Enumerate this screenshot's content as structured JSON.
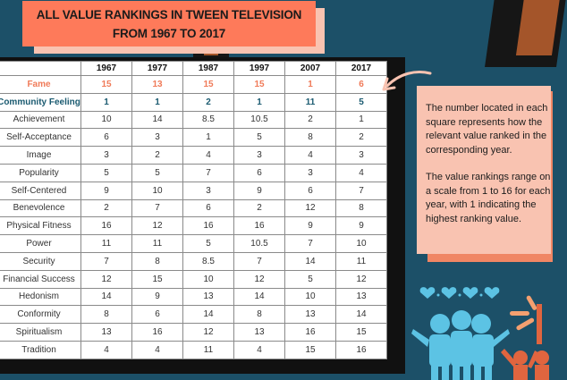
{
  "title": {
    "line1": "ALL VALUE RANKINGS IN TWEEN TELEVISION",
    "line2": "FROM 1967 TO 2017"
  },
  "table": {
    "columns": [
      "",
      "1967",
      "1977",
      "1987",
      "1997",
      "2007",
      "2017"
    ],
    "rows": [
      {
        "label": "Fame",
        "values": [
          "15",
          "13",
          "15",
          "15",
          "1",
          "6"
        ],
        "highlight": "#f07a58"
      },
      {
        "label": "Community Feeling",
        "values": [
          "1",
          "1",
          "2",
          "1",
          "11",
          "5"
        ],
        "highlight": "#1a5a70"
      },
      {
        "label": "Achievement",
        "values": [
          "10",
          "14",
          "8.5",
          "10.5",
          "2",
          "1"
        ]
      },
      {
        "label": "Self-Acceptance",
        "values": [
          "6",
          "3",
          "1",
          "5",
          "8",
          "2"
        ]
      },
      {
        "label": "Image",
        "values": [
          "3",
          "2",
          "4",
          "3",
          "4",
          "3"
        ]
      },
      {
        "label": "Popularity",
        "values": [
          "5",
          "5",
          "7",
          "6",
          "3",
          "4"
        ]
      },
      {
        "label": "Self-Centered",
        "values": [
          "9",
          "10",
          "3",
          "9",
          "6",
          "7"
        ]
      },
      {
        "label": "Benevolence",
        "values": [
          "2",
          "7",
          "6",
          "2",
          "12",
          "8"
        ]
      },
      {
        "label": "Physical Fitness",
        "values": [
          "16",
          "12",
          "16",
          "16",
          "9",
          "9"
        ]
      },
      {
        "label": "Power",
        "values": [
          "11",
          "11",
          "5",
          "10.5",
          "7",
          "10"
        ]
      },
      {
        "label": "Security",
        "values": [
          "7",
          "8",
          "8.5",
          "7",
          "14",
          "11"
        ]
      },
      {
        "label": "Financial Success",
        "values": [
          "12",
          "15",
          "10",
          "12",
          "5",
          "12"
        ]
      },
      {
        "label": "Hedonism",
        "values": [
          "14",
          "9",
          "13",
          "14",
          "10",
          "13"
        ]
      },
      {
        "label": "Conformity",
        "values": [
          "8",
          "6",
          "14",
          "8",
          "13",
          "14"
        ]
      },
      {
        "label": "Spiritualism",
        "values": [
          "13",
          "16",
          "12",
          "13",
          "16",
          "15"
        ]
      },
      {
        "label": "Tradition",
        "values": [
          "4",
          "4",
          "11",
          "4",
          "15",
          "16"
        ]
      }
    ]
  },
  "note": {
    "paragraph1": "The number located in each square represents how the relevant value ranked in the corresponding year.",
    "paragraph2": "The value rankings range on a scale from 1 to 16 for each year, with 1 indicating the highest ranking value."
  },
  "colors": {
    "background": "#1c5068",
    "title_box": "#fe7a5a",
    "note_box": "#f9c3b1",
    "fame": "#f07a58",
    "community": "#1a5a70",
    "figures": "#5cc3e4",
    "figures_orange": "#e0653f"
  },
  "icons": [
    "curved-arrow-icon",
    "hearts-icon",
    "group-hug-figures-icon",
    "cheering-figures-icon"
  ]
}
